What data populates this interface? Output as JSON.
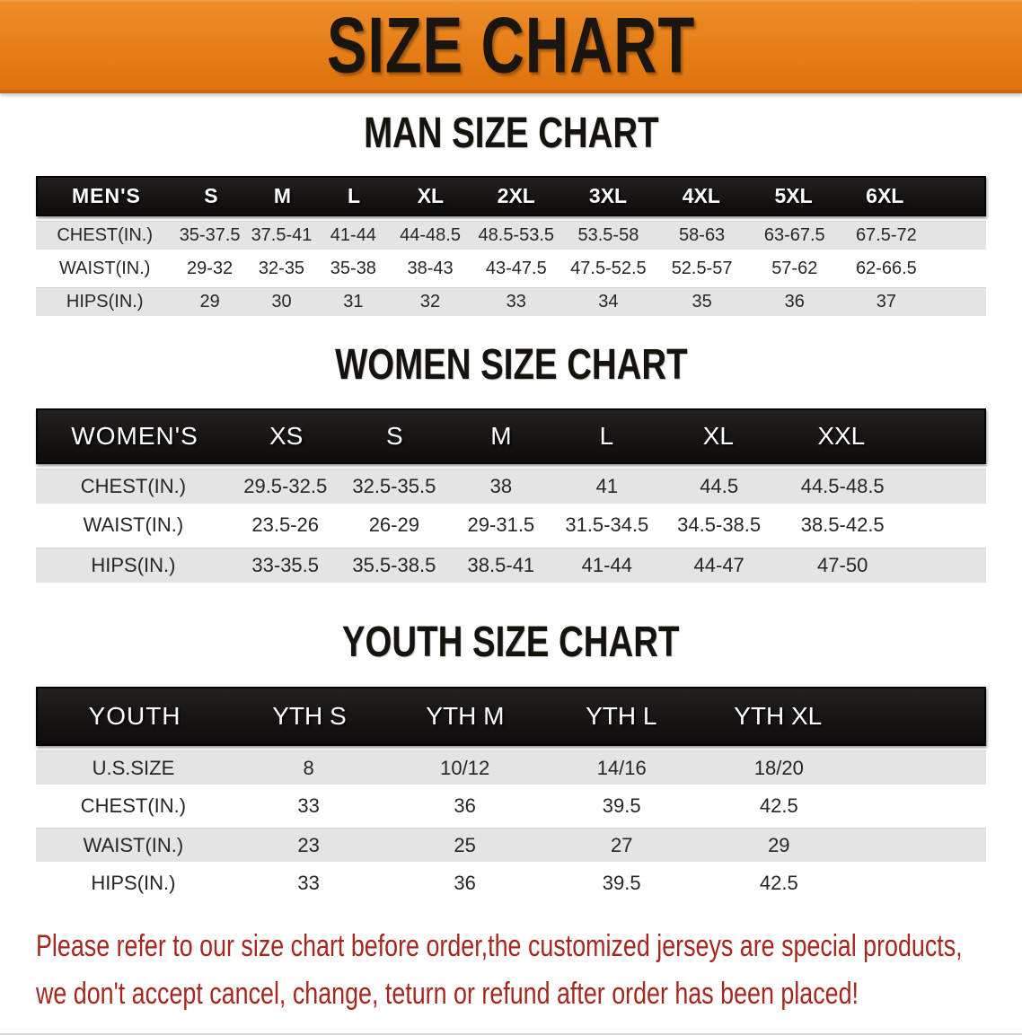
{
  "banner": {
    "title": "SIZE CHART"
  },
  "sections": [
    {
      "heading": "MAN SIZE CHART",
      "table": {
        "header_label": "MEN'S",
        "columns": [
          "S",
          "M",
          "L",
          "XL",
          "2XL",
          "3XL",
          "4XL",
          "5XL",
          "6XL"
        ],
        "rows": [
          {
            "label": "CHEST(IN.)",
            "values": [
              "35-37.5",
              "37.5-41",
              "41-44",
              "44-48.5",
              "48.5-53.5",
              "53.5-58",
              "58-63",
              "63-67.5",
              "67.5-72"
            ]
          },
          {
            "label": "WAIST(IN.)",
            "values": [
              "29-32",
              "32-35",
              "35-38",
              "38-43",
              "43-47.5",
              "47.5-52.5",
              "52.5-57",
              "57-62",
              "62-66.5"
            ]
          },
          {
            "label": "HIPS(IN.)",
            "values": [
              "29",
              "30",
              "31",
              "32",
              "33",
              "34",
              "35",
              "36",
              "37"
            ]
          }
        ]
      }
    },
    {
      "heading": "WOMEN SIZE CHART",
      "table": {
        "header_label": "WOMEN'S",
        "columns": [
          "XS",
          "S",
          "M",
          "L",
          "XL",
          "XXL"
        ],
        "rows": [
          {
            "label": "CHEST(IN.)",
            "values": [
              "29.5-32.5",
              "32.5-35.5",
              "38",
              "41",
              "44.5",
              "44.5-48.5"
            ]
          },
          {
            "label": "WAIST(IN.)",
            "values": [
              "23.5-26",
              "26-29",
              "29-31.5",
              "31.5-34.5",
              "34.5-38.5",
              "38.5-42.5"
            ]
          },
          {
            "label": "HIPS(IN.)",
            "values": [
              "33-35.5",
              "35.5-38.5",
              "38.5-41",
              "41-44",
              "44-47",
              "47-50"
            ]
          }
        ]
      }
    },
    {
      "heading": "YOUTH SIZE CHART",
      "table": {
        "header_label": "YOUTH",
        "columns": [
          "YTH S",
          "YTH M",
          "YTH L",
          "YTH XL"
        ],
        "rows": [
          {
            "label": "U.S.SIZE",
            "values": [
              "8",
              "10/12",
              "14/16",
              "18/20"
            ]
          },
          {
            "label": "CHEST(IN.)",
            "values": [
              "33",
              "36",
              "39.5",
              "42.5"
            ]
          },
          {
            "label": "WAIST(IN.)",
            "values": [
              "23",
              "25",
              "27",
              "29"
            ]
          },
          {
            "label": "HIPS(IN.)",
            "values": [
              "33",
              "36",
              "39.5",
              "42.5"
            ]
          }
        ]
      }
    }
  ],
  "disclaimer": {
    "line1": "Please refer to our size chart before order,the customized jerseys are special products,",
    "line2": "we don't accept cancel, change, teturn or refund after order has been placed!"
  },
  "colors": {
    "banner_orange": "#e67e17",
    "banner_border": "#c96a10",
    "header_bar_black": "#151111",
    "stripe_gray": "#e4e4e4",
    "body_text": "#262626",
    "disclaimer_red": "#a5271d"
  }
}
